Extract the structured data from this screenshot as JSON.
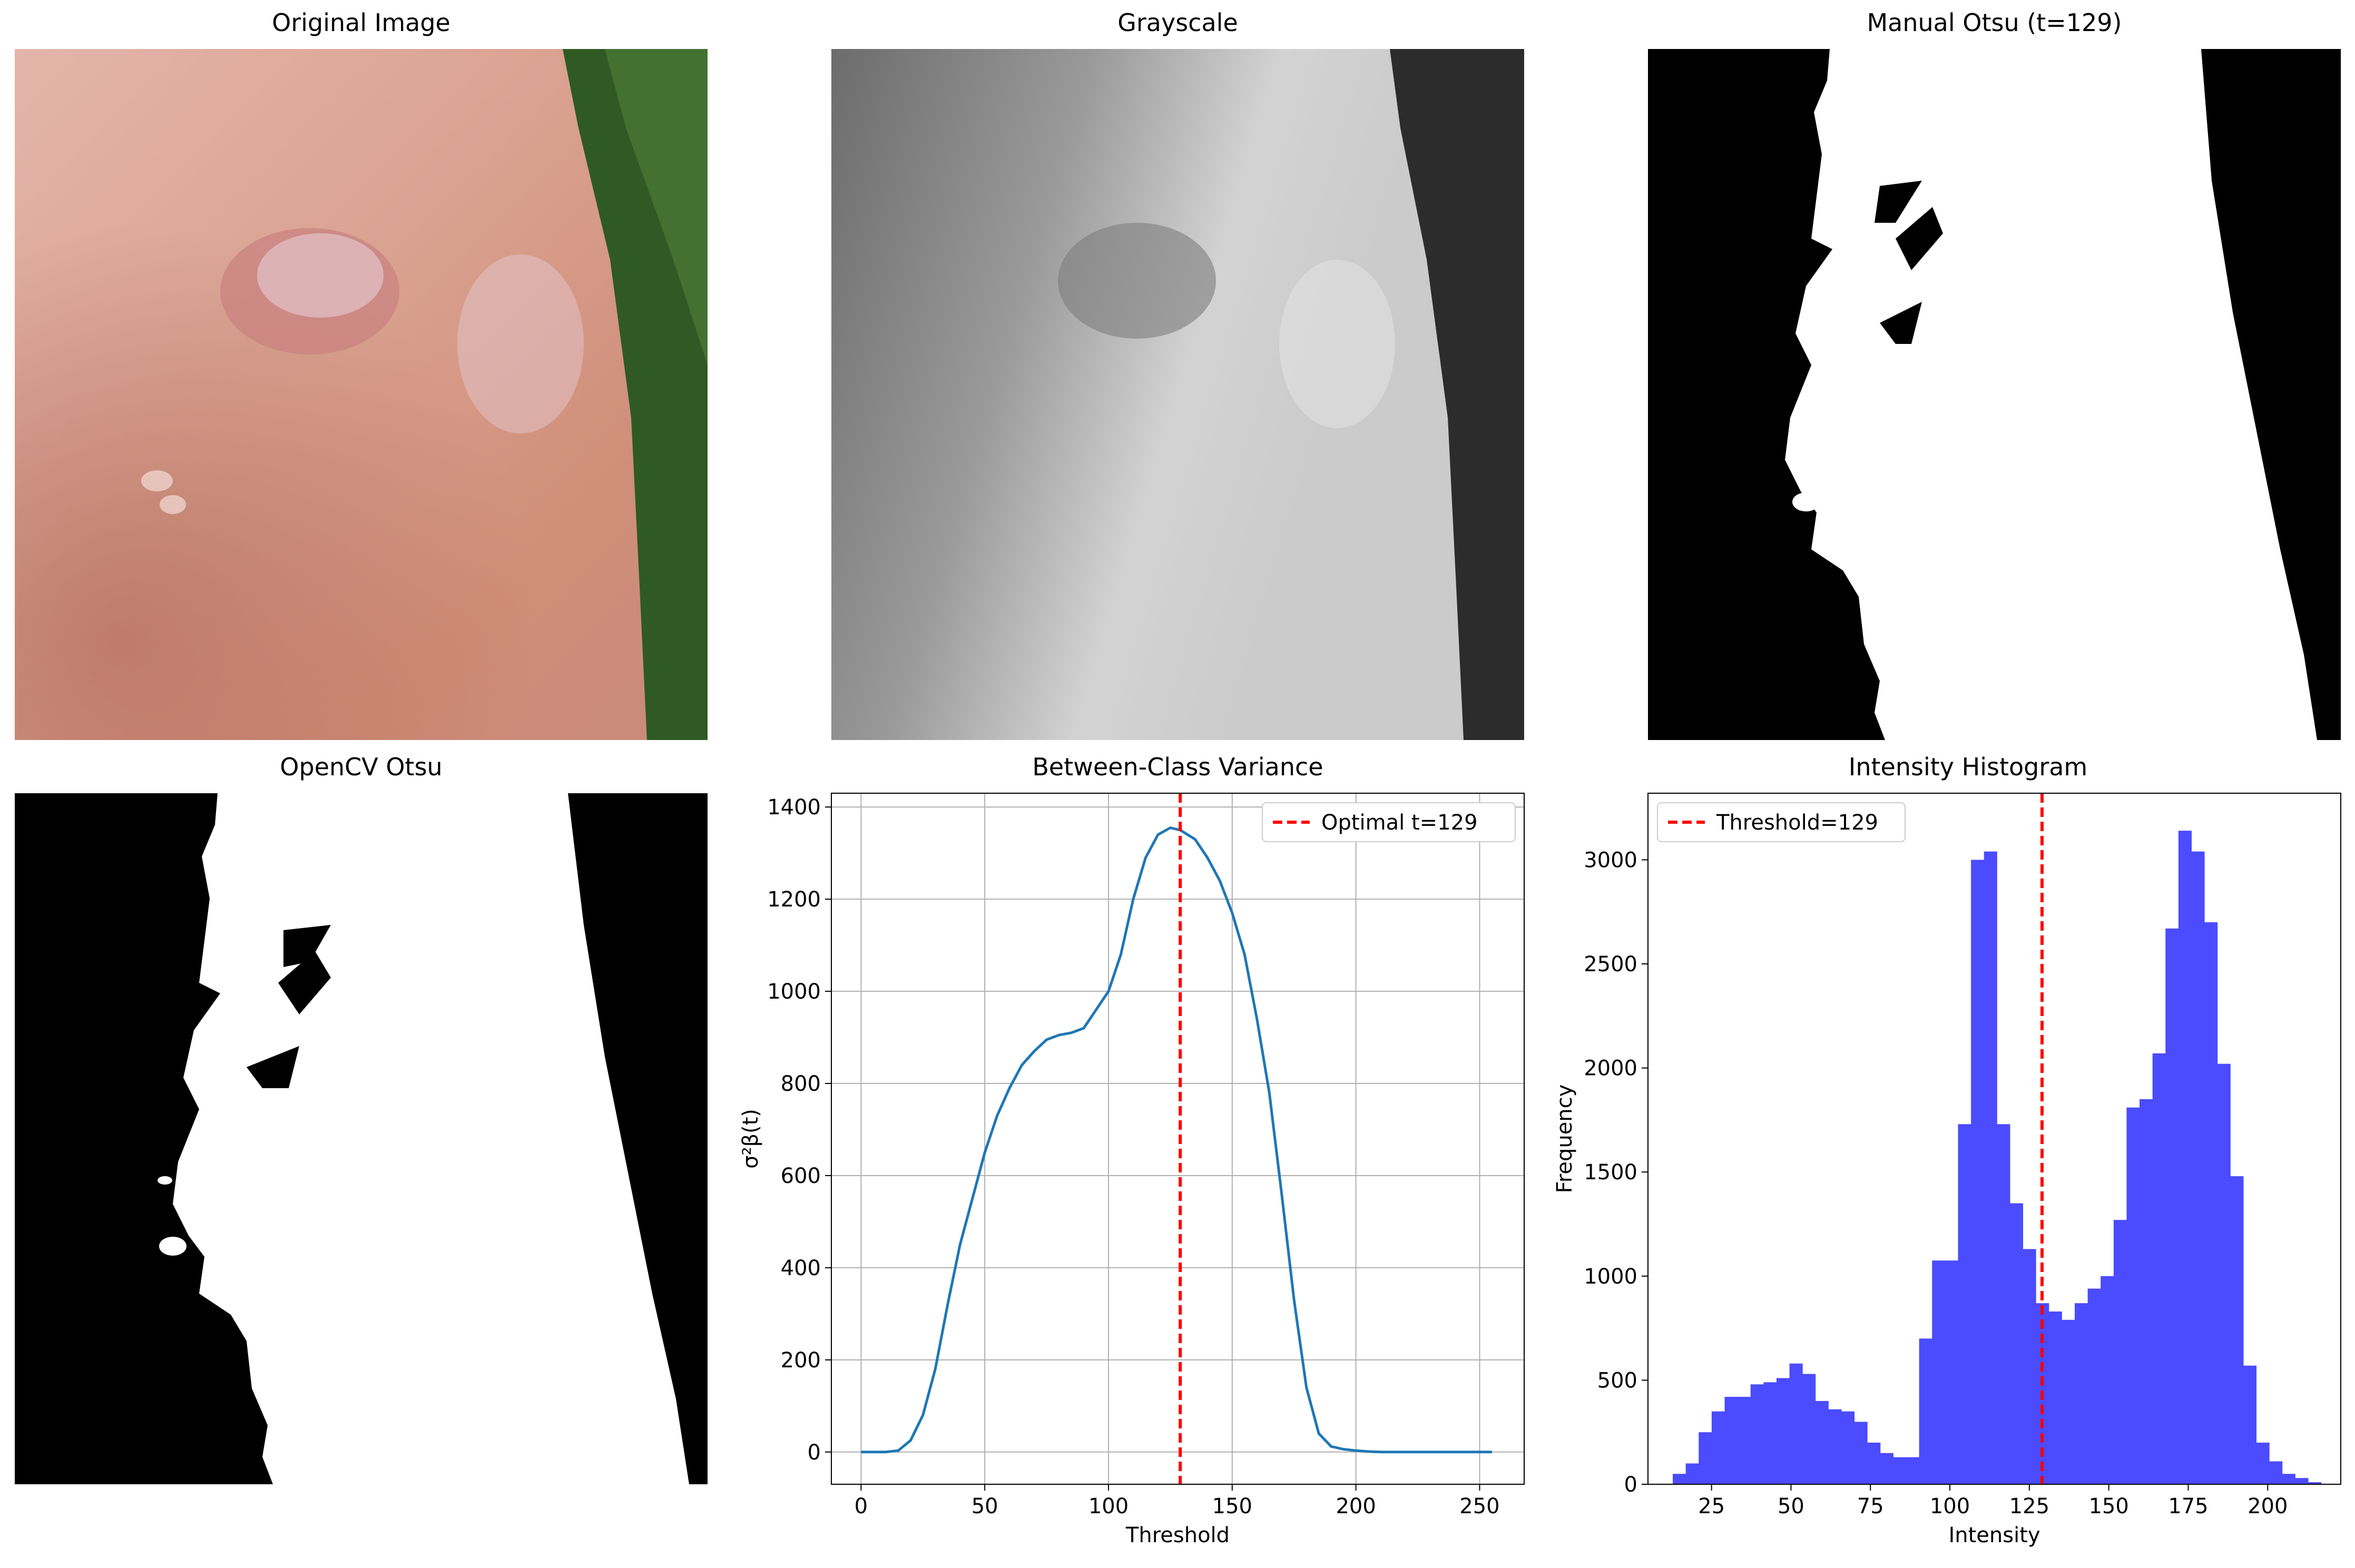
{
  "titles": {
    "original": "Original Image",
    "grayscale": "Grayscale",
    "manual": "Manual Otsu (t=129)",
    "opencv": "OpenCV Otsu",
    "variance": "Between-Class Variance",
    "histogram": "Intensity Histogram"
  },
  "colors": {
    "curve": "#1f77b4",
    "threshold_line": "#ff0000",
    "hist_bar": "#4b4bff",
    "skin": "#d29b8a",
    "foliage": "#2f5a24"
  },
  "chart_data": [
    {
      "type": "line",
      "title": "Between-Class Variance",
      "xlabel": "Threshold",
      "ylabel": "σ²β(t)",
      "xlim": [
        -12,
        268
      ],
      "ylim": [
        -70,
        1430
      ],
      "xticks": [
        0,
        50,
        100,
        150,
        200,
        250
      ],
      "yticks": [
        0,
        200,
        400,
        600,
        800,
        1000,
        1200,
        1400
      ],
      "grid": true,
      "legend": "top-right",
      "legend_label": "Optimal t=129",
      "threshold": 129,
      "x": [
        0,
        5,
        10,
        15,
        20,
        25,
        30,
        35,
        40,
        45,
        50,
        55,
        60,
        65,
        70,
        75,
        80,
        85,
        90,
        95,
        100,
        105,
        110,
        115,
        120,
        125,
        129,
        135,
        140,
        145,
        150,
        155,
        160,
        165,
        170,
        175,
        180,
        185,
        190,
        195,
        200,
        205,
        210,
        220,
        230,
        240,
        255
      ],
      "y": [
        0,
        0,
        0,
        3,
        25,
        80,
        180,
        320,
        450,
        550,
        650,
        730,
        790,
        840,
        870,
        895,
        905,
        910,
        920,
        960,
        1000,
        1080,
        1200,
        1290,
        1340,
        1355,
        1350,
        1330,
        1290,
        1240,
        1170,
        1080,
        940,
        780,
        560,
        330,
        140,
        40,
        12,
        6,
        3,
        1,
        0,
        0,
        0,
        0,
        0
      ]
    },
    {
      "type": "bar",
      "title": "Intensity Histogram",
      "xlabel": "Intensity",
      "ylabel": "Frequency",
      "xlim": [
        5,
        223
      ],
      "ylim": [
        0,
        3320
      ],
      "xticks": [
        25,
        50,
        75,
        100,
        125,
        150,
        175,
        200
      ],
      "yticks": [
        0,
        500,
        1000,
        1500,
        2000,
        2500,
        3000
      ],
      "legend": "top-left",
      "legend_label": "Threshold=129",
      "threshold": 129,
      "bin_start": 12.8,
      "bin_width": 4.08,
      "values": [
        50,
        100,
        250,
        350,
        420,
        420,
        480,
        490,
        510,
        580,
        530,
        400,
        360,
        350,
        300,
        200,
        150,
        130,
        130,
        700,
        1075,
        1075,
        1730,
        3000,
        3040,
        1730,
        1350,
        1130,
        870,
        830,
        790,
        870,
        940,
        1000,
        1270,
        1810,
        1850,
        2070,
        2670,
        3140,
        3040,
        2700,
        2020,
        1480,
        570,
        200,
        110,
        50,
        30,
        10
      ]
    }
  ]
}
